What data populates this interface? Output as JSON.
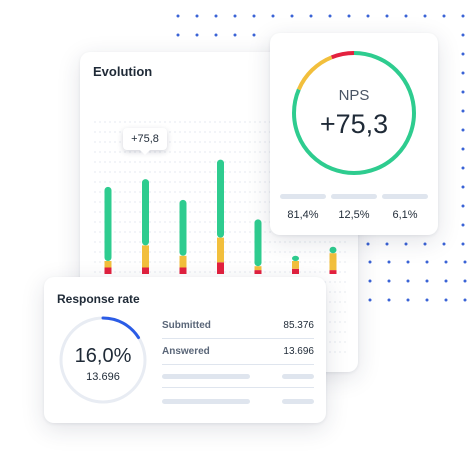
{
  "evolution": {
    "title": "Evolution",
    "tooltip": "+75,8"
  },
  "nps": {
    "label": "NPS",
    "value": "+75,3",
    "breakdown": [
      {
        "percent": "81,4%"
      },
      {
        "percent": "12,5%"
      },
      {
        "percent": "6,1%"
      }
    ]
  },
  "response_rate": {
    "title": "Response rate",
    "percent": "16,0%",
    "count": "13.696",
    "rows": [
      {
        "label": "Submitted",
        "value": "85.376"
      },
      {
        "label": "Answered",
        "value": "13.696"
      }
    ]
  },
  "colors": {
    "promoter": "#2ecc8f",
    "passive": "#f2bf3c",
    "detractor": "#e3213f",
    "accent_blue": "#2b5ce6",
    "dots": "#3a63d6"
  },
  "chart_data": {
    "type": "bar",
    "stacked": true,
    "categories": [
      "",
      "",
      "",
      "",
      "",
      "",
      ""
    ],
    "series": [
      {
        "values": [
          5,
          5,
          5,
          9,
          3,
          4,
          3
        ]
      },
      {
        "values": [
          5,
          17,
          9,
          19,
          3,
          6,
          13
        ]
      },
      {
        "values": [
          57,
          51,
          43,
          60,
          36,
          4,
          5
        ]
      }
    ],
    "series_colors": [
      "#e3213f",
      "#f2bf3c",
      "#2ecc8f"
    ],
    "ylim": [
      0,
      100
    ],
    "grid": true
  }
}
